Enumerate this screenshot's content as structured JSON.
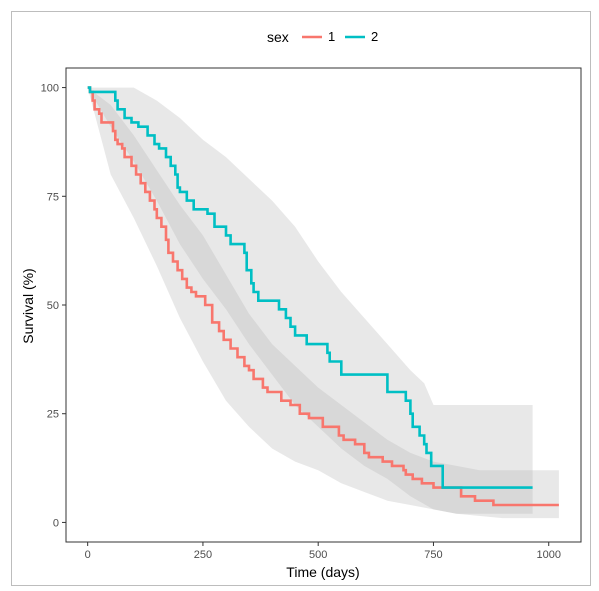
{
  "chart_data": {
    "type": "line",
    "title": "",
    "xlabel": "Time (days)",
    "ylabel": "Survival (%)",
    "xlim": [
      0,
      1022
    ],
    "ylim": [
      0,
      100
    ],
    "xticks": [
      0,
      250,
      500,
      750,
      1000
    ],
    "yticks": [
      0,
      25,
      50,
      75,
      100
    ],
    "grid": false,
    "legend": {
      "title": "sex",
      "position": "top"
    },
    "series": [
      {
        "name": "1",
        "color": "#F8766D",
        "steps": [
          [
            0,
            100
          ],
          [
            5,
            99
          ],
          [
            11,
            97
          ],
          [
            15,
            95
          ],
          [
            25,
            94
          ],
          [
            30,
            92
          ],
          [
            55,
            90
          ],
          [
            60,
            88
          ],
          [
            65,
            87
          ],
          [
            75,
            86
          ],
          [
            80,
            84
          ],
          [
            95,
            82
          ],
          [
            105,
            80
          ],
          [
            115,
            78
          ],
          [
            125,
            76
          ],
          [
            135,
            74
          ],
          [
            145,
            72
          ],
          [
            150,
            70
          ],
          [
            160,
            68
          ],
          [
            170,
            65
          ],
          [
            175,
            62
          ],
          [
            185,
            60
          ],
          [
            195,
            58
          ],
          [
            205,
            56
          ],
          [
            215,
            54
          ],
          [
            225,
            53
          ],
          [
            235,
            52
          ],
          [
            255,
            50
          ],
          [
            270,
            46
          ],
          [
            285,
            44
          ],
          [
            295,
            42
          ],
          [
            310,
            40
          ],
          [
            325,
            38
          ],
          [
            340,
            36
          ],
          [
            350,
            35
          ],
          [
            360,
            33
          ],
          [
            380,
            31
          ],
          [
            390,
            30
          ],
          [
            420,
            28
          ],
          [
            440,
            27
          ],
          [
            460,
            25
          ],
          [
            480,
            24
          ],
          [
            510,
            22
          ],
          [
            545,
            20
          ],
          [
            555,
            19
          ],
          [
            580,
            18
          ],
          [
            600,
            16
          ],
          [
            610,
            15
          ],
          [
            640,
            14
          ],
          [
            660,
            13
          ],
          [
            685,
            12
          ],
          [
            690,
            11
          ],
          [
            705,
            10
          ],
          [
            725,
            9
          ],
          [
            750,
            8
          ],
          [
            770,
            8
          ],
          [
            810,
            6
          ],
          [
            840,
            5
          ],
          [
            880,
            4
          ],
          [
            1022,
            4
          ]
        ],
        "ci_upper": [
          [
            0,
            100
          ],
          [
            50,
            96
          ],
          [
            100,
            89
          ],
          [
            150,
            81
          ],
          [
            200,
            73
          ],
          [
            250,
            66
          ],
          [
            300,
            57
          ],
          [
            350,
            48
          ],
          [
            400,
            41
          ],
          [
            450,
            36
          ],
          [
            500,
            31
          ],
          [
            550,
            27
          ],
          [
            600,
            23
          ],
          [
            650,
            19
          ],
          [
            700,
            16
          ],
          [
            750,
            14
          ],
          [
            800,
            13
          ],
          [
            850,
            12
          ],
          [
            900,
            12
          ],
          [
            1022,
            12
          ]
        ],
        "ci_lower": [
          [
            0,
            100
          ],
          [
            50,
            80
          ],
          [
            100,
            70
          ],
          [
            150,
            59
          ],
          [
            200,
            47
          ],
          [
            250,
            37
          ],
          [
            300,
            28
          ],
          [
            350,
            22
          ],
          [
            400,
            17
          ],
          [
            450,
            14
          ],
          [
            500,
            12
          ],
          [
            550,
            9
          ],
          [
            600,
            7
          ],
          [
            650,
            5
          ],
          [
            700,
            4
          ],
          [
            750,
            3
          ],
          [
            800,
            2
          ],
          [
            900,
            1
          ],
          [
            1022,
            1
          ]
        ]
      },
      {
        "name": "2",
        "color": "#00BFC4",
        "steps": [
          [
            0,
            100
          ],
          [
            5,
            99
          ],
          [
            60,
            97
          ],
          [
            65,
            95
          ],
          [
            80,
            93
          ],
          [
            95,
            92
          ],
          [
            110,
            91
          ],
          [
            130,
            89
          ],
          [
            145,
            87
          ],
          [
            155,
            86
          ],
          [
            170,
            84
          ],
          [
            180,
            82
          ],
          [
            190,
            80
          ],
          [
            195,
            77
          ],
          [
            200,
            76
          ],
          [
            215,
            74
          ],
          [
            230,
            72
          ],
          [
            260,
            71
          ],
          [
            275,
            68
          ],
          [
            300,
            66
          ],
          [
            310,
            64
          ],
          [
            340,
            62
          ],
          [
            345,
            58
          ],
          [
            355,
            55
          ],
          [
            360,
            53
          ],
          [
            370,
            51
          ],
          [
            415,
            49
          ],
          [
            430,
            47
          ],
          [
            440,
            45
          ],
          [
            450,
            43
          ],
          [
            475,
            41
          ],
          [
            520,
            39
          ],
          [
            525,
            37
          ],
          [
            550,
            34
          ],
          [
            610,
            34
          ],
          [
            650,
            30
          ],
          [
            690,
            28
          ],
          [
            700,
            25
          ],
          [
            705,
            22
          ],
          [
            720,
            20
          ],
          [
            730,
            18
          ],
          [
            735,
            16
          ],
          [
            745,
            13
          ],
          [
            760,
            13
          ],
          [
            770,
            8
          ],
          [
            965,
            8
          ]
        ],
        "ci_upper": [
          [
            0,
            100
          ],
          [
            100,
            100
          ],
          [
            150,
            97
          ],
          [
            200,
            93
          ],
          [
            250,
            88
          ],
          [
            300,
            84
          ],
          [
            350,
            79
          ],
          [
            400,
            74
          ],
          [
            450,
            68
          ],
          [
            500,
            60
          ],
          [
            550,
            53
          ],
          [
            600,
            47
          ],
          [
            650,
            41
          ],
          [
            700,
            35
          ],
          [
            730,
            32
          ],
          [
            750,
            27
          ],
          [
            965,
            27
          ]
        ],
        "ci_lower": [
          [
            0,
            100
          ],
          [
            50,
            91
          ],
          [
            100,
            83
          ],
          [
            150,
            74
          ],
          [
            200,
            64
          ],
          [
            250,
            56
          ],
          [
            300,
            49
          ],
          [
            350,
            41
          ],
          [
            400,
            34
          ],
          [
            450,
            27
          ],
          [
            500,
            22
          ],
          [
            550,
            17
          ],
          [
            600,
            13
          ],
          [
            650,
            10
          ],
          [
            700,
            6
          ],
          [
            750,
            3
          ],
          [
            800,
            2
          ],
          [
            965,
            2
          ]
        ]
      }
    ]
  }
}
